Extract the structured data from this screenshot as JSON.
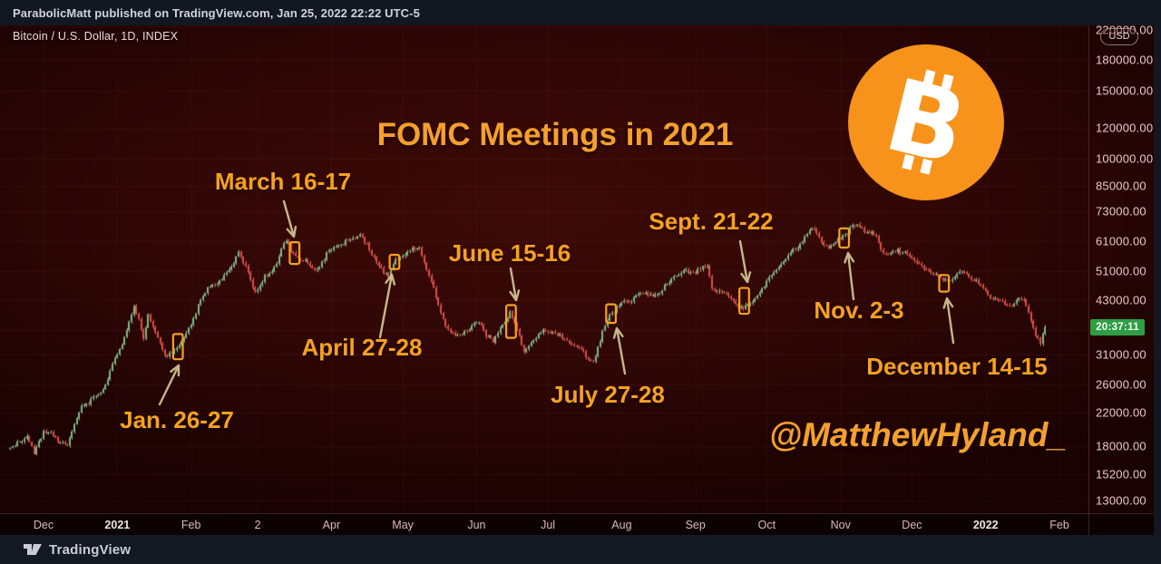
{
  "page": {
    "publish_line": "ParabolicMatt published on TradingView.com, Jan 25, 2022 22:22 UTC-5"
  },
  "chart": {
    "symbol_legend": "Bitcoin / U.S. Dollar, 1D, INDEX",
    "annotation_title": "FOMC Meetings in 2021",
    "credit_handle": "@MatthewHyland_",
    "countdown": "20:37:11",
    "currency_badge": "USD"
  },
  "fomc": {
    "meetings": [
      {
        "label": "Jan. 26-27"
      },
      {
        "label": "March 16-17"
      },
      {
        "label": "April 27-28"
      },
      {
        "label": "June 15-16"
      },
      {
        "label": "July 27-28"
      },
      {
        "label": "Sept. 21-22"
      },
      {
        "label": "Nov. 2-3"
      },
      {
        "label": "December 14-15"
      }
    ]
  },
  "footer": {
    "brand": "TradingView"
  },
  "colors": {
    "accent_orange": "#f7a11f",
    "bitcoin_orange": "#f7931a",
    "candle_up": "#7fba86",
    "candle_up_wick": "#8fc79b",
    "candle_down": "#df4f45",
    "candle_down_wick": "#e4635a",
    "arrow": "rgba(214,203,150,0.9)",
    "countdown_green": "#2f9e45"
  },
  "chart_data": {
    "type": "candlestick",
    "title": "FOMC Meetings in 2021",
    "symbol": "Bitcoin / U.S. Dollar",
    "interval": "1D",
    "exchange": "INDEX",
    "y_scale": "log",
    "x_range": [
      "2020-11-17",
      "2022-02-07"
    ],
    "price_axis_ticks": [
      {
        "label": "220000.00",
        "value": 220000
      },
      {
        "label": "180000.00",
        "value": 180000
      },
      {
        "label": "150000.00",
        "value": 150000
      },
      {
        "label": "120000.00",
        "value": 120000
      },
      {
        "label": "100000.00",
        "value": 100000
      },
      {
        "label": "85000.00",
        "value": 85000
      },
      {
        "label": "73000.00",
        "value": 73000
      },
      {
        "label": "61000.00",
        "value": 61000
      },
      {
        "label": "51000.00",
        "value": 51000
      },
      {
        "label": "43000.00",
        "value": 43000
      },
      {
        "label": "",
        "value": 36000,
        "hidden": true
      },
      {
        "label": "31000.00",
        "value": 31000
      },
      {
        "label": "26000.00",
        "value": 26000
      },
      {
        "label": "22000.00",
        "value": 22000
      },
      {
        "label": "18000.00",
        "value": 18000
      },
      {
        "label": "15200.00",
        "value": 15200
      },
      {
        "label": "13000.00",
        "value": 13000
      }
    ],
    "time_axis_ticks": [
      {
        "label": "Dec",
        "date": "2020-12-01"
      },
      {
        "label": "2021",
        "date": "2021-01-01",
        "bold": true
      },
      {
        "label": "Feb",
        "date": "2021-02-01"
      },
      {
        "label": "2",
        "date": "2021-03-01"
      },
      {
        "label": "Apr",
        "date": "2021-04-01"
      },
      {
        "label": "May",
        "date": "2021-05-01"
      },
      {
        "label": "Jun",
        "date": "2021-06-01"
      },
      {
        "label": "Jul",
        "date": "2021-07-01"
      },
      {
        "label": "Aug",
        "date": "2021-08-01"
      },
      {
        "label": "Sep",
        "date": "2021-09-01"
      },
      {
        "label": "Oct",
        "date": "2021-10-01"
      },
      {
        "label": "Nov",
        "date": "2021-11-01"
      },
      {
        "label": "Dec",
        "date": "2021-12-01"
      },
      {
        "label": "2022",
        "date": "2022-01-01",
        "bold": true
      },
      {
        "label": "Feb",
        "date": "2022-02-01"
      }
    ],
    "current_candle_countdown": "20:37:11",
    "last_price_usd": 36600,
    "price_path_usd": [
      [
        "2020-11-17",
        17800
      ],
      [
        "2020-11-24",
        19100
      ],
      [
        "2020-11-27",
        17150
      ],
      [
        "2020-12-01",
        19700
      ],
      [
        "2020-12-11",
        18050
      ],
      [
        "2020-12-17",
        22900
      ],
      [
        "2020-12-25",
        24700
      ],
      [
        "2021-01-03",
        33000
      ],
      [
        "2021-01-08",
        41500
      ],
      [
        "2021-01-12",
        34100
      ],
      [
        "2021-01-14",
        39500
      ],
      [
        "2021-01-21",
        30900
      ],
      [
        "2021-01-26",
        32300
      ],
      [
        "2021-01-29",
        34300
      ],
      [
        "2021-02-08",
        46400
      ],
      [
        "2021-02-14",
        48600
      ],
      [
        "2021-02-21",
        57400
      ],
      [
        "2021-02-28",
        45200
      ],
      [
        "2021-03-08",
        52400
      ],
      [
        "2021-03-13",
        61200
      ],
      [
        "2021-03-16",
        56900
      ],
      [
        "2021-03-25",
        51400
      ],
      [
        "2021-04-02",
        59000
      ],
      [
        "2021-04-13",
        63600
      ],
      [
        "2021-04-18",
        56200
      ],
      [
        "2021-04-25",
        49100
      ],
      [
        "2021-04-28",
        54900
      ],
      [
        "2021-05-08",
        58800
      ],
      [
        "2021-05-12",
        49700
      ],
      [
        "2021-05-19",
        36800
      ],
      [
        "2021-05-23",
        34800
      ],
      [
        "2021-06-02",
        37600
      ],
      [
        "2021-06-08",
        33400
      ],
      [
        "2021-06-15",
        40150
      ],
      [
        "2021-06-21",
        31600
      ],
      [
        "2021-06-29",
        36000
      ],
      [
        "2021-07-09",
        33800
      ],
      [
        "2021-07-20",
        29800
      ],
      [
        "2021-07-27",
        39500
      ],
      [
        "2021-08-08",
        44600
      ],
      [
        "2021-08-17",
        44700
      ],
      [
        "2021-08-23",
        49500
      ],
      [
        "2021-09-06",
        52700
      ],
      [
        "2021-09-08",
        46000
      ],
      [
        "2021-09-13",
        44900
      ],
      [
        "2021-09-21",
        40700
      ],
      [
        "2021-09-26",
        43400
      ],
      [
        "2021-10-05",
        51500
      ],
      [
        "2021-10-20",
        66000
      ],
      [
        "2021-10-27",
        58500
      ],
      [
        "2021-11-02",
        63200
      ],
      [
        "2021-11-08",
        67500
      ],
      [
        "2021-11-15",
        63600
      ],
      [
        "2021-11-19",
        56900
      ],
      [
        "2021-11-28",
        57300
      ],
      [
        "2021-12-03",
        53600
      ],
      [
        "2021-12-14",
        48300
      ],
      [
        "2021-12-23",
        50800
      ],
      [
        "2021-12-31",
        46200
      ],
      [
        "2022-01-05",
        43400
      ],
      [
        "2022-01-10",
        41800
      ],
      [
        "2022-01-17",
        43100
      ],
      [
        "2022-01-21",
        36400
      ],
      [
        "2022-01-24",
        33100
      ],
      [
        "2022-01-26",
        36600
      ]
    ],
    "fomc_annotations": [
      {
        "meeting": "Jan. 26-27",
        "dates": [
          "2021-01-26",
          "2021-01-27"
        ],
        "price_range_usd": [
          30200,
          35100
        ]
      },
      {
        "meeting": "March 16-17",
        "dates": [
          "2021-03-16",
          "2021-03-17"
        ],
        "price_range_usd": [
          53300,
          60700
        ]
      },
      {
        "meeting": "April 27-28",
        "dates": [
          "2021-04-27",
          "2021-04-28"
        ],
        "price_range_usd": [
          51700,
          56300
        ]
      },
      {
        "meeting": "June 15-16",
        "dates": [
          "2021-06-15",
          "2021-06-16"
        ],
        "price_range_usd": [
          34300,
          41700
        ]
      },
      {
        "meeting": "July 27-28",
        "dates": [
          "2021-07-27",
          "2021-07-28"
        ],
        "price_range_usd": [
          37500,
          41900
        ]
      },
      {
        "meeting": "Sept. 21-22",
        "dates": [
          "2021-09-21",
          "2021-09-22"
        ],
        "price_range_usd": [
          39600,
          46200
        ]
      },
      {
        "meeting": "Nov. 2-3",
        "dates": [
          "2021-11-02",
          "2021-11-03"
        ],
        "price_range_usd": [
          58800,
          65900
        ]
      },
      {
        "meeting": "December 14-15",
        "dates": [
          "2021-12-14",
          "2021-12-15"
        ],
        "price_range_usd": [
          45200,
          49900
        ]
      }
    ]
  }
}
